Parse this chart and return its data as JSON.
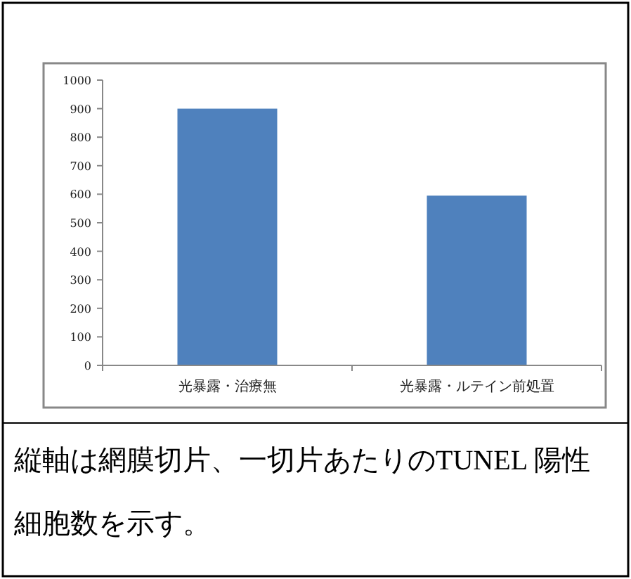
{
  "chart_data": {
    "type": "bar",
    "categories": [
      "光暴露・治療無",
      "光暴露・ルテイン前処置"
    ],
    "values": [
      900,
      595
    ],
    "color": "#4f81bd",
    "ylim": [
      0,
      1000
    ],
    "yticks": [
      0,
      100,
      200,
      300,
      400,
      500,
      600,
      700,
      800,
      900,
      1000
    ],
    "grid": false,
    "annotations": [
      "縦軸は網膜切片、一切片あたりのTUNEL 陽性細胞数を示す。"
    ]
  }
}
